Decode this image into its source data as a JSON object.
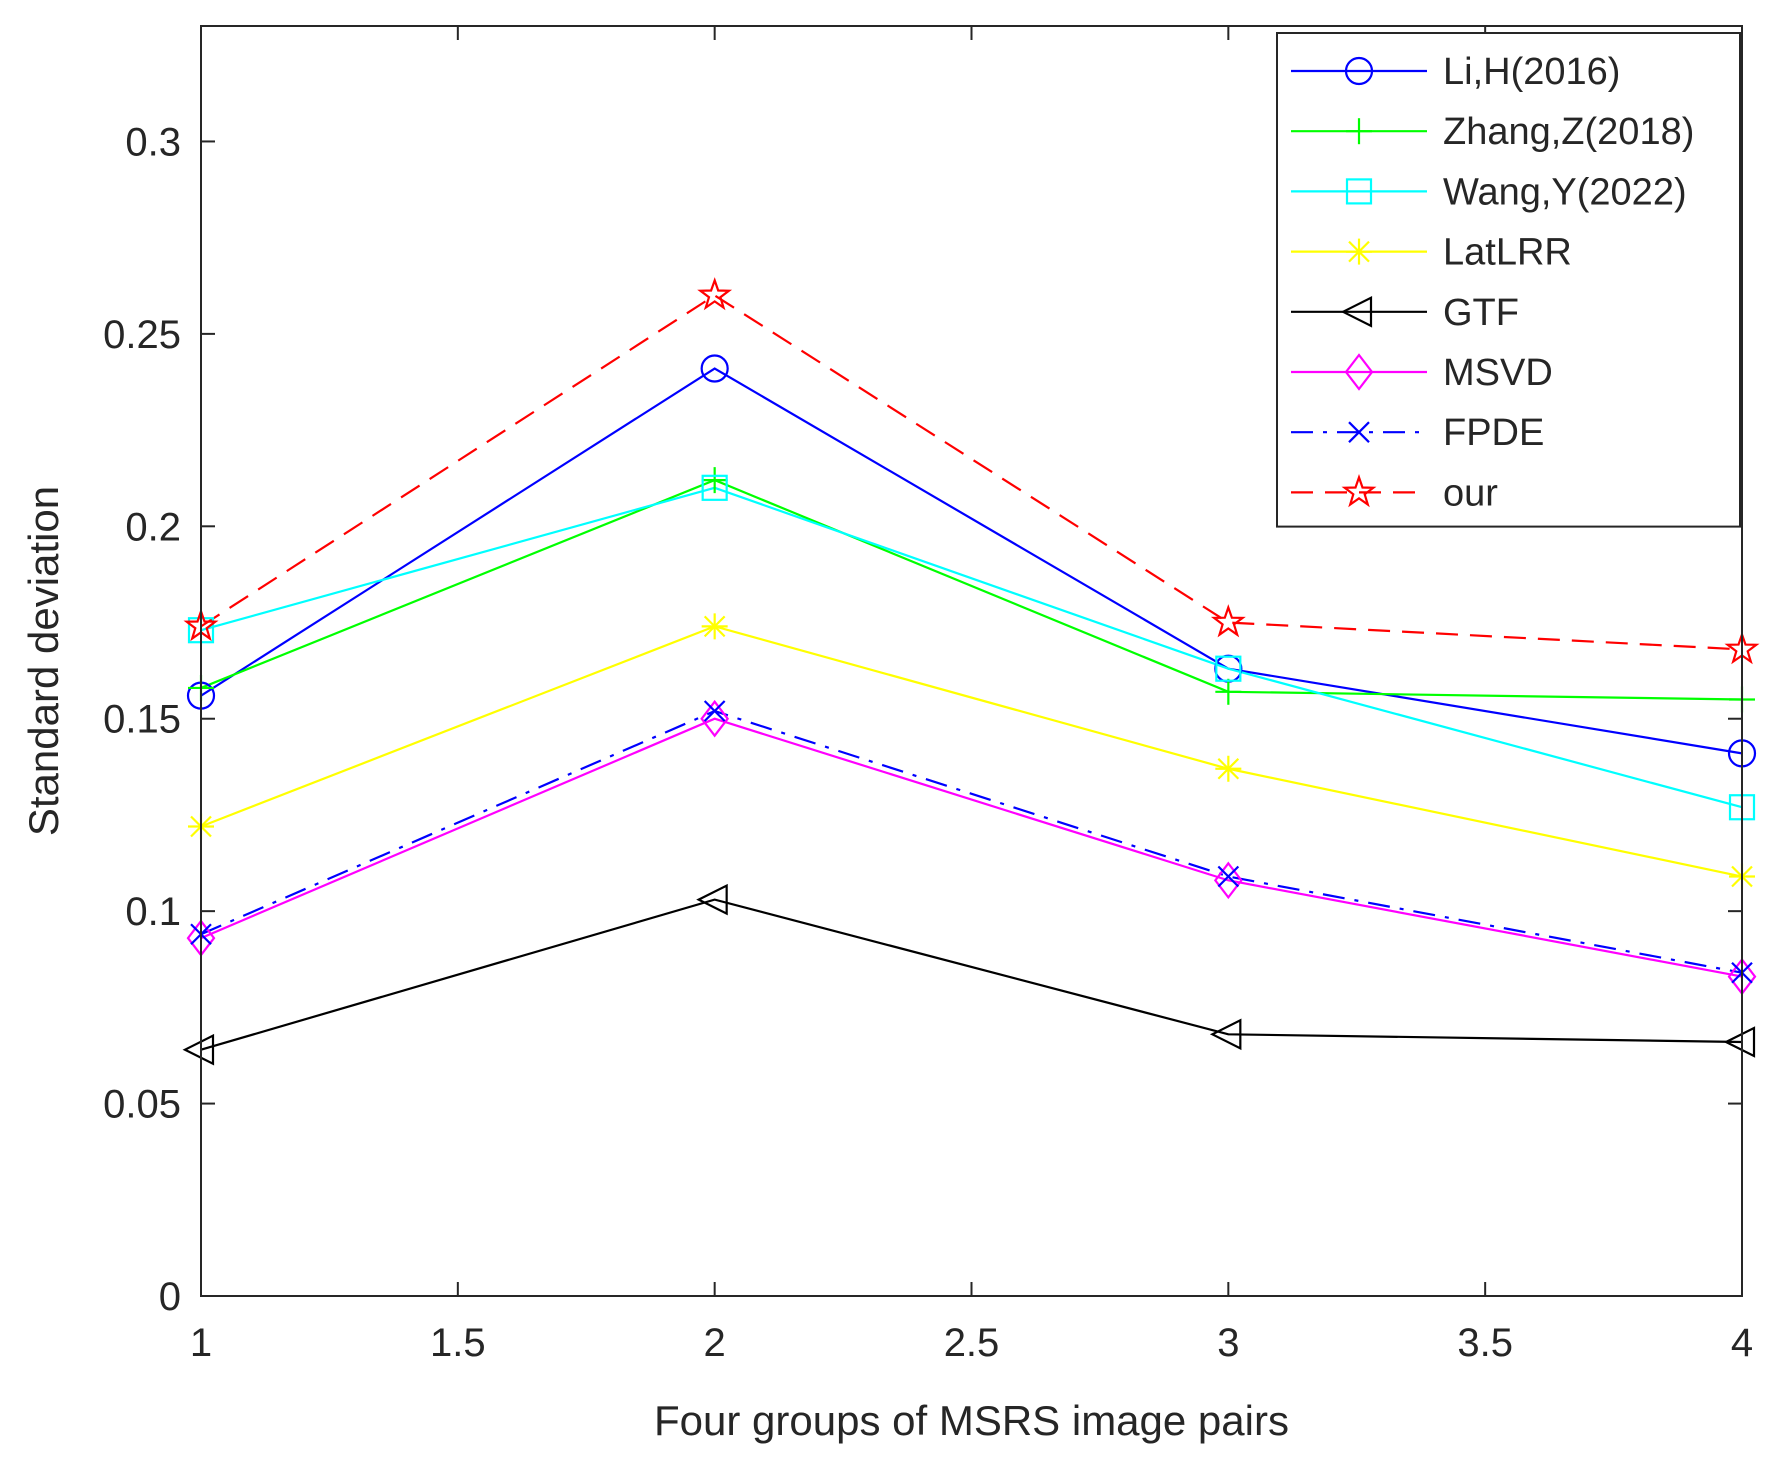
{
  "chart_data": {
    "type": "line",
    "title": "",
    "xlabel": "Four groups of MSRS image pairs",
    "ylabel": "Standard deviation",
    "x": [
      1,
      2,
      3,
      4
    ],
    "xlim": [
      1,
      4
    ],
    "ylim": [
      0,
      0.33
    ],
    "xticks": [
      1,
      1.5,
      2,
      2.5,
      3,
      3.5,
      4
    ],
    "xtick_labels": [
      "1",
      "1.5",
      "2",
      "2.5",
      "3",
      "3.5",
      "4"
    ],
    "yticks": [
      0,
      0.05,
      0.1,
      0.15,
      0.2,
      0.25,
      0.3
    ],
    "ytick_labels": [
      "0",
      "0.05",
      "0.1",
      "0.15",
      "0.2",
      "0.25",
      "0.3"
    ],
    "grid": false,
    "legend_position": "top-right",
    "series": [
      {
        "name": "Li,H(2016)",
        "values": [
          0.156,
          0.241,
          0.163,
          0.141
        ],
        "color": "#0000ff",
        "marker": "circle",
        "dash": "solid"
      },
      {
        "name": "Zhang,Z(2018)",
        "values": [
          0.158,
          0.212,
          0.157,
          0.155
        ],
        "color": "#00ff00",
        "marker": "plus",
        "dash": "solid"
      },
      {
        "name": "Wang,Y(2022)",
        "values": [
          0.173,
          0.21,
          0.163,
          0.127
        ],
        "color": "#00ffff",
        "marker": "square",
        "dash": "solid"
      },
      {
        "name": "LatLRR",
        "values": [
          0.122,
          0.174,
          0.137,
          0.109
        ],
        "color": "#ffff00",
        "marker": "asterisk",
        "dash": "solid"
      },
      {
        "name": "GTF",
        "values": [
          0.064,
          0.103,
          0.068,
          0.066
        ],
        "color": "#000000",
        "marker": "triangle-left",
        "dash": "solid"
      },
      {
        "name": "MSVD",
        "values": [
          0.093,
          0.15,
          0.108,
          0.083
        ],
        "color": "#ff00ff",
        "marker": "diamond",
        "dash": "solid"
      },
      {
        "name": "FPDE",
        "values": [
          0.094,
          0.152,
          0.109,
          0.084
        ],
        "color": "#0000ff",
        "marker": "x",
        "dash": "dashdot"
      },
      {
        "name": "our",
        "values": [
          0.174,
          0.26,
          0.175,
          0.168
        ],
        "color": "#ff0000",
        "marker": "pentagram",
        "dash": "dashed"
      }
    ]
  }
}
